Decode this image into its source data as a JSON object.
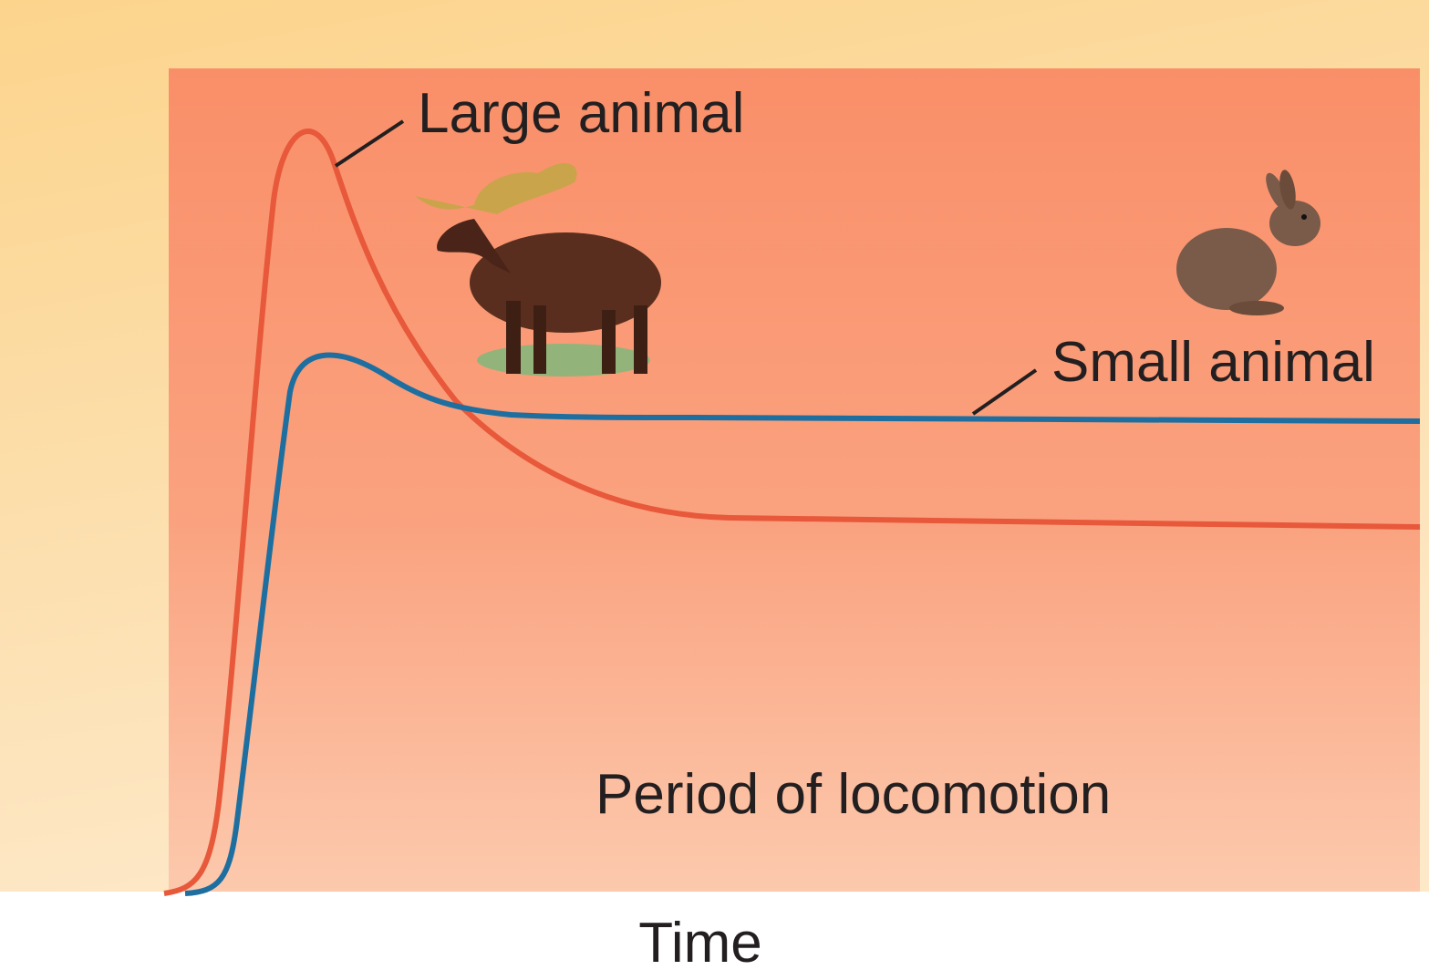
{
  "labels": {
    "large_animal": "Large animal",
    "small_animal": "Small animal",
    "period": "Period of locomotion",
    "x_axis": "Time"
  }
}
